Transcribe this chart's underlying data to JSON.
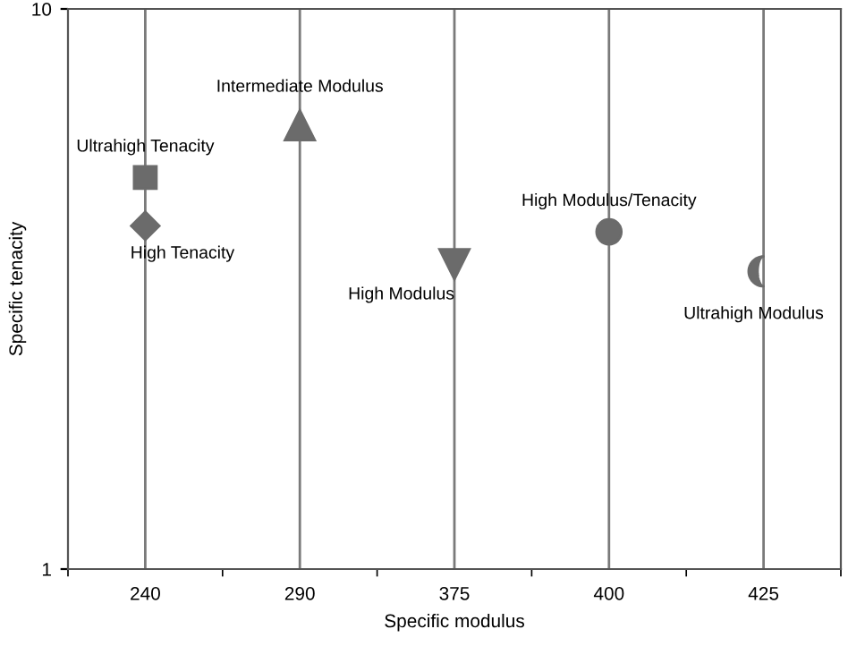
{
  "chart_data": {
    "type": "scatter",
    "xlabel": "Specific modulus",
    "ylabel": "Specific tenacity",
    "categories": [
      "240",
      "290",
      "375",
      "400",
      "425"
    ],
    "log": "y",
    "ylim": [
      1,
      10
    ],
    "yticks": [
      1,
      10
    ],
    "grid": "x",
    "legend": false,
    "series": [
      {
        "name": "Ultrahigh Tenacity",
        "color": "#6b6b6b",
        "marker": "square",
        "x": [
          "240"
        ],
        "values": [
          5.0
        ]
      },
      {
        "name": "High Tenacity",
        "color": "#6b6b6b",
        "marker": "diamond",
        "x": [
          "240"
        ],
        "values": [
          4.1
        ]
      },
      {
        "name": "Intermediate Modulus",
        "color": "#6b6b6b",
        "marker": "triangle",
        "x": [
          "290"
        ],
        "values": [
          6.2
        ]
      },
      {
        "name": "High Modulus",
        "color": "#6b6b6b",
        "marker": "triangle_down",
        "x": [
          "375"
        ],
        "values": [
          3.5
        ]
      },
      {
        "name": "High Modulus/Tenacity",
        "color": "#6b6b6b",
        "marker": "circle",
        "x": [
          "400"
        ],
        "values": [
          4.0
        ]
      },
      {
        "name": "Ultrahigh Modulus",
        "color": "#6b6b6b",
        "x": [
          "425"
        ],
        "values": [
          3.4
        ]
      }
    ]
  }
}
